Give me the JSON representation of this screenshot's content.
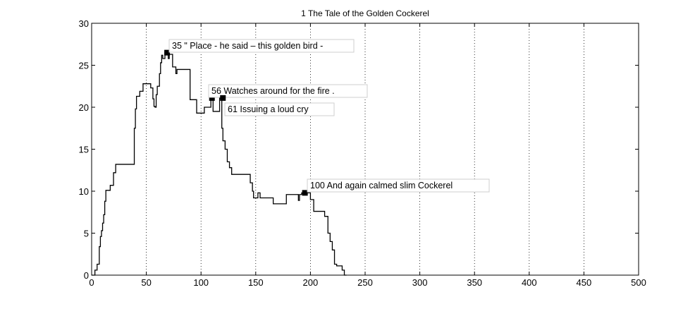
{
  "chart_data": {
    "type": "line",
    "title": "1 The Tale of the Golden Cockerel",
    "xlabel": "",
    "ylabel": "",
    "xlim": [
      0,
      500
    ],
    "ylim": [
      0,
      30
    ],
    "xticks": [
      0,
      50,
      100,
      150,
      200,
      250,
      300,
      350,
      400,
      450,
      500
    ],
    "yticks": [
      0,
      5,
      10,
      15,
      20,
      25,
      30
    ],
    "grid": "x-dotted",
    "series": [
      {
        "color": "#000000",
        "points": [
          [
            0,
            0
          ],
          [
            3,
            0
          ],
          [
            3,
            0.6
          ],
          [
            5,
            0.6
          ],
          [
            5,
            1.3
          ],
          [
            7,
            1.3
          ],
          [
            7,
            3.4
          ],
          [
            8,
            3.4
          ],
          [
            8,
            4.6
          ],
          [
            9,
            4.6
          ],
          [
            9,
            5.3
          ],
          [
            10,
            5.3
          ],
          [
            10,
            6.2
          ],
          [
            11,
            6.2
          ],
          [
            11,
            7.2
          ],
          [
            12,
            7.2
          ],
          [
            12,
            8.8
          ],
          [
            13,
            8.8
          ],
          [
            13,
            10.1
          ],
          [
            17,
            10.1
          ],
          [
            17,
            10.7
          ],
          [
            20,
            10.7
          ],
          [
            20,
            12.2
          ],
          [
            22,
            12.2
          ],
          [
            22,
            13.2
          ],
          [
            39,
            13.2
          ],
          [
            39,
            17.5
          ],
          [
            40,
            17.5
          ],
          [
            40,
            19.8
          ],
          [
            41,
            19.8
          ],
          [
            41,
            21.3
          ],
          [
            44,
            21.3
          ],
          [
            44,
            21.9
          ],
          [
            47,
            21.9
          ],
          [
            47,
            22.8
          ],
          [
            54,
            22.8
          ],
          [
            54,
            22.3
          ],
          [
            56,
            22.3
          ],
          [
            56,
            21.0
          ],
          [
            57,
            21.0
          ],
          [
            57,
            20.1
          ],
          [
            58,
            20.1
          ],
          [
            58,
            20.0
          ],
          [
            59,
            20.0
          ],
          [
            59,
            21.5
          ],
          [
            60,
            21.5
          ],
          [
            60,
            22.5
          ],
          [
            62,
            22.5
          ],
          [
            62,
            24.0
          ],
          [
            63,
            24.0
          ],
          [
            63,
            25.3
          ],
          [
            64,
            25.3
          ],
          [
            64,
            26.2
          ],
          [
            65,
            26.2
          ],
          [
            65,
            25.8
          ],
          [
            67,
            25.8
          ],
          [
            67,
            26.5
          ],
          [
            70,
            26.5
          ],
          [
            70,
            25.8
          ],
          [
            71,
            25.8
          ],
          [
            71,
            26.3
          ],
          [
            74,
            26.3
          ],
          [
            74,
            24.8
          ],
          [
            77,
            24.8
          ],
          [
            77,
            24.0
          ],
          [
            78,
            24.0
          ],
          [
            78,
            24.5
          ],
          [
            90,
            24.5
          ],
          [
            90,
            20.9
          ],
          [
            96,
            20.9
          ],
          [
            96,
            19.3
          ],
          [
            103,
            19.3
          ],
          [
            103,
            20.0
          ],
          [
            109,
            20.0
          ],
          [
            109,
            21.1
          ],
          [
            111,
            21.1
          ],
          [
            111,
            19.5
          ],
          [
            117,
            19.5
          ],
          [
            117,
            21.1
          ],
          [
            119,
            21.1
          ],
          [
            119,
            17.5
          ],
          [
            120,
            17.5
          ],
          [
            120,
            16.0
          ],
          [
            122,
            16.0
          ],
          [
            122,
            15.0
          ],
          [
            124,
            15.0
          ],
          [
            124,
            13.5
          ],
          [
            126,
            13.5
          ],
          [
            126,
            12.8
          ],
          [
            128,
            12.8
          ],
          [
            128,
            12.0
          ],
          [
            145,
            12.0
          ],
          [
            145,
            11.0
          ],
          [
            147,
            11.0
          ],
          [
            147,
            10.0
          ],
          [
            148,
            10.0
          ],
          [
            148,
            9.2
          ],
          [
            152,
            9.2
          ],
          [
            152,
            9.8
          ],
          [
            154,
            9.8
          ],
          [
            154,
            9.2
          ],
          [
            166,
            9.2
          ],
          [
            166,
            8.5
          ],
          [
            178,
            8.5
          ],
          [
            178,
            9.6
          ],
          [
            189,
            9.6
          ],
          [
            189,
            8.9
          ],
          [
            190,
            8.9
          ],
          [
            190,
            9.6
          ],
          [
            192,
            9.6
          ],
          [
            192,
            9.8
          ],
          [
            200,
            9.8
          ],
          [
            200,
            9.0
          ],
          [
            203,
            9.0
          ],
          [
            203,
            7.6
          ],
          [
            213,
            7.6
          ],
          [
            213,
            7.0
          ],
          [
            216,
            7.0
          ],
          [
            216,
            5.0
          ],
          [
            218,
            5.0
          ],
          [
            218,
            4.0
          ],
          [
            220,
            4.0
          ],
          [
            220,
            3.0
          ],
          [
            222,
            3.0
          ],
          [
            222,
            1.3
          ],
          [
            224,
            1.3
          ],
          [
            224,
            1.1
          ],
          [
            229,
            1.1
          ],
          [
            229,
            0.6
          ],
          [
            231,
            0.6
          ],
          [
            231,
            0.0
          ],
          [
            233,
            0.0
          ]
        ]
      }
    ],
    "annotations": [
      {
        "x": 69,
        "y": 26.5,
        "text": "35 \" Place - he said – this golden bird -"
      },
      {
        "x": 110,
        "y": 21.1,
        "text": "56 Watches around for the fire ."
      },
      {
        "x": 120,
        "y": 21.1,
        "text": "61 Issuing a loud cry"
      },
      {
        "x": 195,
        "y": 9.8,
        "text": "100 And again calmed slim Cockerel"
      }
    ]
  }
}
